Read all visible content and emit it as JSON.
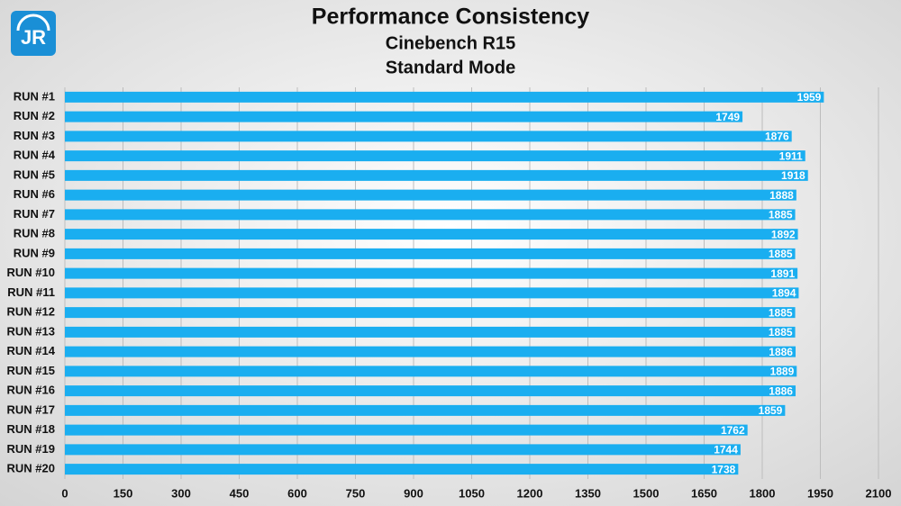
{
  "logo": "JR",
  "chart_data": {
    "type": "bar",
    "orientation": "horizontal",
    "title": "Performance Consistency",
    "subtitle": "Cinebench R15",
    "subtitle2": "Standard Mode",
    "categories": [
      "RUN #1",
      "RUN #2",
      "RUN #3",
      "RUN #4",
      "RUN #5",
      "RUN #6",
      "RUN #7",
      "RUN #8",
      "RUN #9",
      "RUN #10",
      "RUN #11",
      "RUN #12",
      "RUN #13",
      "RUN #14",
      "RUN #15",
      "RUN #16",
      "RUN #17",
      "RUN #18",
      "RUN #19",
      "RUN #20"
    ],
    "values": [
      1959,
      1749,
      1876,
      1911,
      1918,
      1888,
      1885,
      1892,
      1885,
      1891,
      1894,
      1885,
      1885,
      1886,
      1889,
      1886,
      1859,
      1762,
      1744,
      1738
    ],
    "color": "#1aaef0",
    "xlim": [
      0,
      2100
    ],
    "xticks": [
      0,
      150,
      300,
      450,
      600,
      750,
      900,
      1050,
      1200,
      1350,
      1500,
      1650,
      1800,
      1950,
      2100
    ],
    "grid": true
  }
}
